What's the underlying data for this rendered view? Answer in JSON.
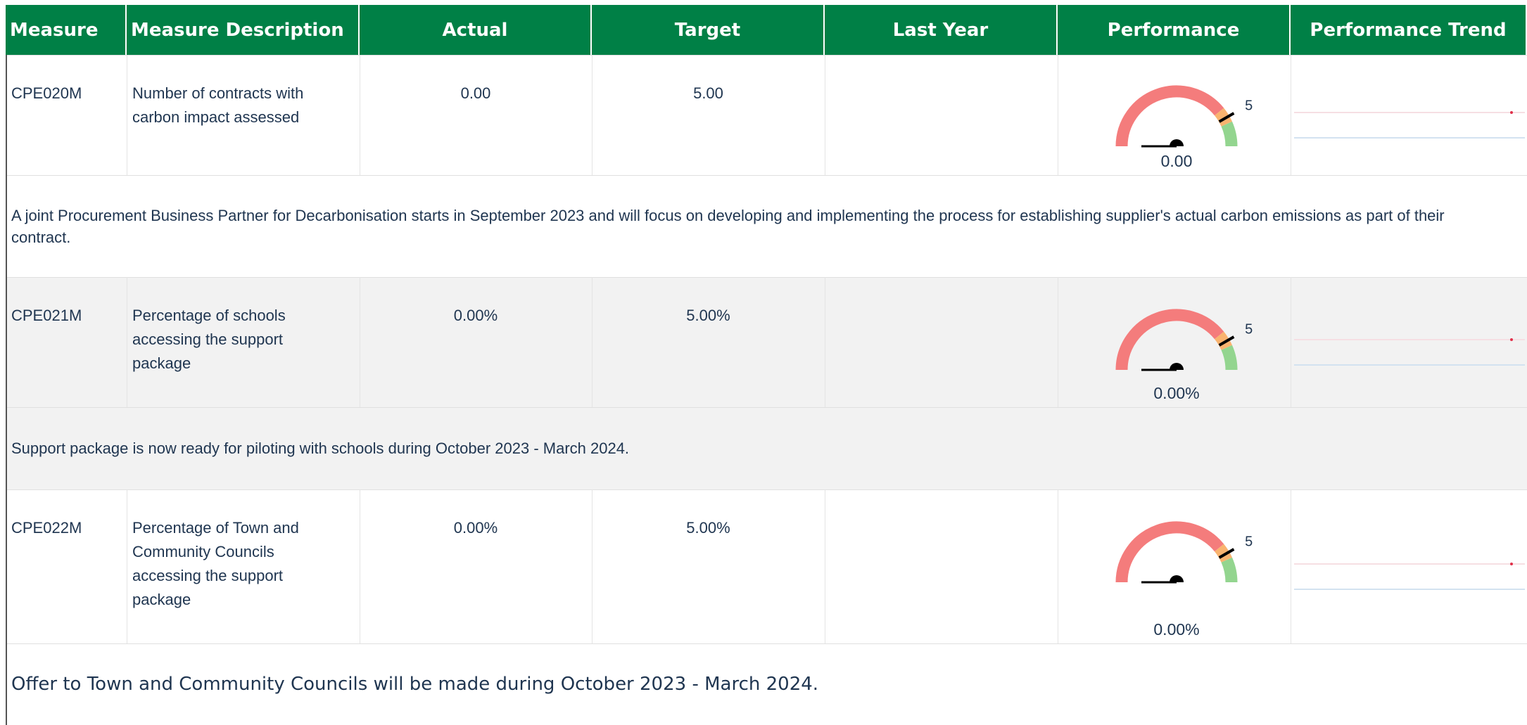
{
  "table": {
    "columns": [
      "Measure",
      "Measure Description",
      "Actual",
      "Target",
      "Last Year",
      "Performance",
      "Performance Trend"
    ],
    "rows": [
      {
        "measure": "CPE020M",
        "description": "Number of contracts with carbon impact assessed",
        "actual": "0.00",
        "target": "5.00",
        "gauge": {
          "value": 0,
          "value_label": "0.00",
          "target": 5,
          "range": [
            0,
            6
          ]
        },
        "comment": "A joint Procurement Business Partner for Decarbonisation starts in September 2023 and will focus on developing and implementing the process for establishing supplier's actual carbon emissions as part of their contract."
      },
      {
        "measure": "CPE021M",
        "description": "Percentage of schools accessing the support package",
        "actual": "0.00%",
        "target": "5.00%",
        "gauge": {
          "value": 0,
          "value_label": "0.00%",
          "target": 5,
          "range": [
            0,
            6
          ]
        },
        "comment": "Support package is now ready for piloting with schools during October 2023 - March 2024."
      },
      {
        "measure": "CPE022M",
        "description": "Percentage of Town and Community Councils accessing the support package",
        "actual": "0.00%",
        "target": "5.00%",
        "gauge": {
          "value": 0,
          "value_label": "0.00%",
          "target": 5,
          "range": [
            0,
            6
          ]
        },
        "comment": "Offer to Town and Community Councils will be made during October 2023 - March 2024."
      }
    ]
  },
  "gauge_bands": [
    {
      "to": 4.7,
      "color": "#f47c7c"
    },
    {
      "to": 5.2,
      "color": "#f9b36f"
    },
    {
      "to": 6,
      "color": "#93d58f"
    }
  ]
}
